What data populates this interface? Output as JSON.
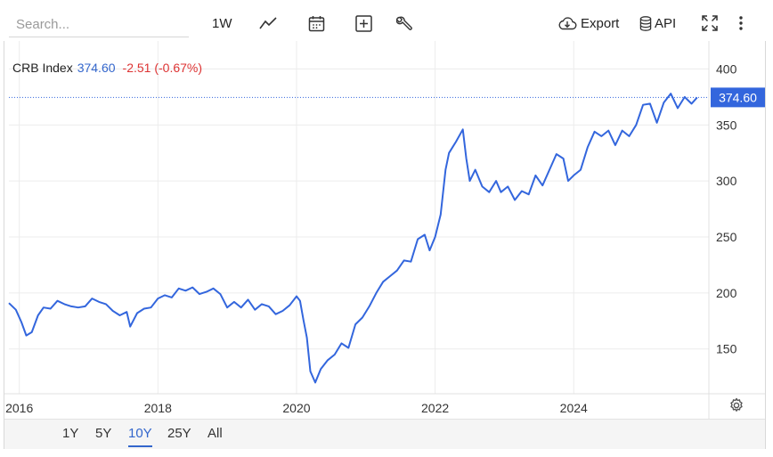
{
  "toolbar": {
    "search_placeholder": "Search...",
    "interval_label": "1W",
    "export_label": "Export",
    "api_label": "API",
    "icons": [
      "line-chart-icon",
      "calendar-icon",
      "add-indicator-icon",
      "wrench-icon",
      "cloud-download-icon",
      "database-icon",
      "fullscreen-icon",
      "more-vertical-icon",
      "settings-icon"
    ]
  },
  "legend": {
    "name": "CRB Index",
    "value": "374.60",
    "change": "-2.51 (-0.67%)"
  },
  "last_price_label": "374.60",
  "ranges": [
    {
      "label": "1Y",
      "active": false
    },
    {
      "label": "5Y",
      "active": false
    },
    {
      "label": "10Y",
      "active": true
    },
    {
      "label": "25Y",
      "active": false
    },
    {
      "label": "All",
      "active": false
    }
  ],
  "colors": {
    "line": "#3366dd",
    "up": "#3366cc",
    "down": "#dd3333",
    "grid": "#ececec",
    "price_tag": "#3366dd"
  },
  "chart_data": {
    "type": "line",
    "title": "CRB Index",
    "xlabel": "",
    "ylabel": "",
    "x_ticks": [
      "2016",
      "2018",
      "2020",
      "2022",
      "2024"
    ],
    "y_ticks": [
      150,
      200,
      250,
      300,
      350,
      400
    ],
    "xlim": [
      2015.85,
      2025.95
    ],
    "ylim": [
      110,
      425
    ],
    "grid": true,
    "y_axis_side": "right",
    "last_value": 374.6,
    "series": [
      {
        "name": "CRB Index",
        "points": [
          [
            2015.85,
            191
          ],
          [
            2015.95,
            185
          ],
          [
            2016.03,
            174
          ],
          [
            2016.1,
            162
          ],
          [
            2016.18,
            165
          ],
          [
            2016.27,
            180
          ],
          [
            2016.35,
            187
          ],
          [
            2016.45,
            186
          ],
          [
            2016.55,
            193
          ],
          [
            2016.65,
            190
          ],
          [
            2016.75,
            188
          ],
          [
            2016.85,
            187
          ],
          [
            2016.95,
            188
          ],
          [
            2017.05,
            195
          ],
          [
            2017.15,
            192
          ],
          [
            2017.25,
            190
          ],
          [
            2017.35,
            184
          ],
          [
            2017.45,
            180
          ],
          [
            2017.55,
            183
          ],
          [
            2017.6,
            170
          ],
          [
            2017.7,
            182
          ],
          [
            2017.8,
            186
          ],
          [
            2017.9,
            187
          ],
          [
            2018.0,
            195
          ],
          [
            2018.1,
            198
          ],
          [
            2018.2,
            196
          ],
          [
            2018.3,
            204
          ],
          [
            2018.4,
            202
          ],
          [
            2018.5,
            205
          ],
          [
            2018.6,
            199
          ],
          [
            2018.7,
            201
          ],
          [
            2018.8,
            204
          ],
          [
            2018.9,
            199
          ],
          [
            2019.0,
            187
          ],
          [
            2019.1,
            192
          ],
          [
            2019.2,
            187
          ],
          [
            2019.3,
            194
          ],
          [
            2019.4,
            185
          ],
          [
            2019.5,
            190
          ],
          [
            2019.6,
            188
          ],
          [
            2019.7,
            181
          ],
          [
            2019.8,
            184
          ],
          [
            2019.9,
            189
          ],
          [
            2020.0,
            197
          ],
          [
            2020.05,
            193
          ],
          [
            2020.1,
            176
          ],
          [
            2020.15,
            160
          ],
          [
            2020.2,
            130
          ],
          [
            2020.27,
            120
          ],
          [
            2020.35,
            132
          ],
          [
            2020.45,
            140
          ],
          [
            2020.55,
            145
          ],
          [
            2020.65,
            155
          ],
          [
            2020.75,
            151
          ],
          [
            2020.85,
            172
          ],
          [
            2020.95,
            178
          ],
          [
            2021.05,
            188
          ],
          [
            2021.15,
            200
          ],
          [
            2021.25,
            210
          ],
          [
            2021.35,
            215
          ],
          [
            2021.45,
            220
          ],
          [
            2021.55,
            229
          ],
          [
            2021.65,
            228
          ],
          [
            2021.75,
            248
          ],
          [
            2021.85,
            252
          ],
          [
            2021.92,
            238
          ],
          [
            2022.0,
            250
          ],
          [
            2022.08,
            270
          ],
          [
            2022.15,
            310
          ],
          [
            2022.2,
            325
          ],
          [
            2022.3,
            335
          ],
          [
            2022.4,
            346
          ],
          [
            2022.45,
            320
          ],
          [
            2022.5,
            300
          ],
          [
            2022.58,
            310
          ],
          [
            2022.68,
            295
          ],
          [
            2022.78,
            290
          ],
          [
            2022.88,
            300
          ],
          [
            2022.95,
            290
          ],
          [
            2023.05,
            295
          ],
          [
            2023.15,
            283
          ],
          [
            2023.25,
            291
          ],
          [
            2023.35,
            288
          ],
          [
            2023.45,
            305
          ],
          [
            2023.55,
            296
          ],
          [
            2023.65,
            310
          ],
          [
            2023.75,
            324
          ],
          [
            2023.85,
            320
          ],
          [
            2023.92,
            300
          ],
          [
            2024.0,
            305
          ],
          [
            2024.1,
            310
          ],
          [
            2024.2,
            330
          ],
          [
            2024.3,
            344
          ],
          [
            2024.4,
            340
          ],
          [
            2024.5,
            345
          ],
          [
            2024.6,
            332
          ],
          [
            2024.7,
            345
          ],
          [
            2024.8,
            340
          ],
          [
            2024.9,
            350
          ],
          [
            2025.0,
            368
          ],
          [
            2025.1,
            369
          ],
          [
            2025.2,
            352
          ],
          [
            2025.3,
            370
          ],
          [
            2025.4,
            378
          ],
          [
            2025.5,
            365
          ],
          [
            2025.6,
            375
          ],
          [
            2025.7,
            369
          ],
          [
            2025.78,
            374.6
          ]
        ]
      }
    ]
  }
}
